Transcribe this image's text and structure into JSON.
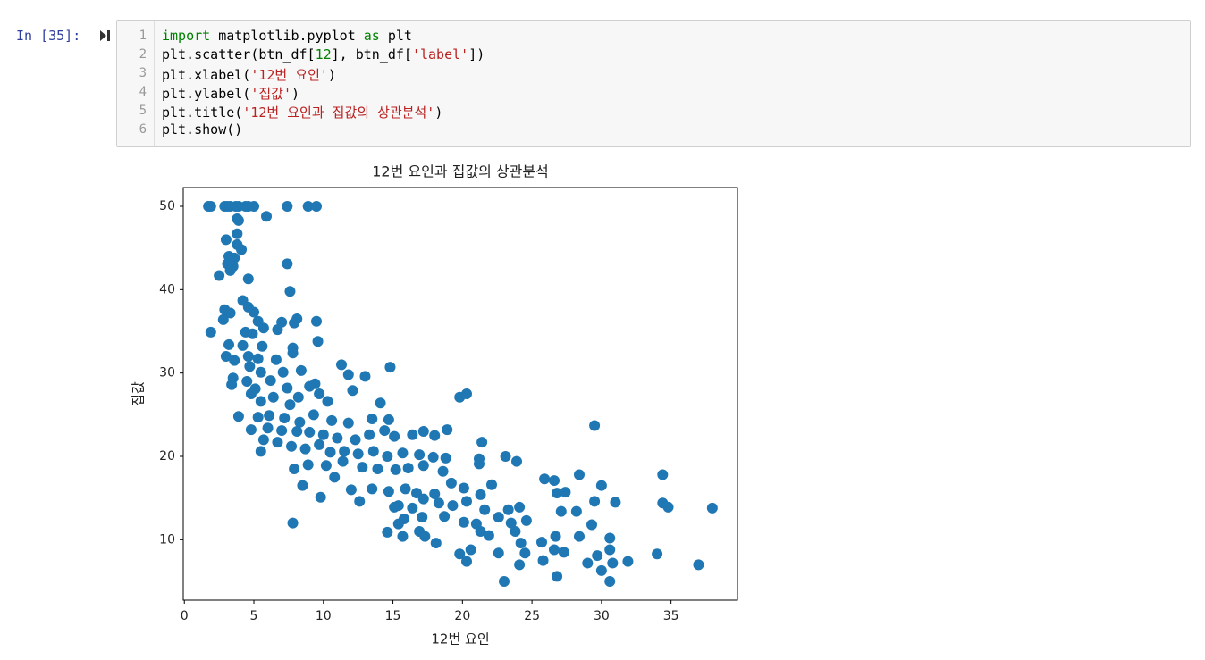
{
  "prompt": "In [35]:",
  "code": {
    "lines": [
      {
        "number": 1,
        "tokens": [
          {
            "text": "import",
            "style": "kw"
          },
          {
            "text": " matplotlib.pyplot "
          },
          {
            "text": "as",
            "style": "kw"
          },
          {
            "text": " plt"
          }
        ]
      },
      {
        "number": 2,
        "tokens": [
          {
            "text": "plt.scatter(btn_df["
          },
          {
            "text": "12",
            "style": "num"
          },
          {
            "text": "], btn_df["
          },
          {
            "text": "'label'",
            "style": "str"
          },
          {
            "text": "])"
          }
        ]
      },
      {
        "number": 3,
        "tokens": [
          {
            "text": "plt.xlabel("
          },
          {
            "text": "'12번 요인'",
            "style": "str"
          },
          {
            "text": ")"
          }
        ]
      },
      {
        "number": 4,
        "tokens": [
          {
            "text": "plt.ylabel("
          },
          {
            "text": "'집값'",
            "style": "str"
          },
          {
            "text": ")"
          }
        ]
      },
      {
        "number": 5,
        "tokens": [
          {
            "text": "plt.title("
          },
          {
            "text": "'12번 요인과 집값의 상관분석'",
            "style": "str"
          },
          {
            "text": ")"
          }
        ]
      },
      {
        "number": 6,
        "tokens": [
          {
            "text": "plt.show()"
          }
        ]
      }
    ],
    "styles": {
      "kw": "#008000",
      "str": "#ba2121",
      "num": "#008000"
    }
  },
  "chart_data": {
    "type": "scatter",
    "title": "12번 요인과 집값의 상관분석",
    "xlabel": "12번 요인",
    "ylabel": "집값",
    "color": "#1f77b4",
    "xlim": [
      -0.08,
      39.78
    ],
    "ylim": [
      2.75,
      52.25
    ],
    "xticks": [
      0,
      5,
      10,
      15,
      20,
      25,
      30,
      35
    ],
    "yticks": [
      10,
      20,
      30,
      40,
      50
    ],
    "x": [
      1.73,
      1.9,
      2.9,
      3.1,
      3.3,
      3.7,
      3.9,
      4.4,
      4.6,
      5.0,
      7.4,
      8.9,
      9.5,
      5.9,
      3.8,
      3.9,
      3.8,
      3.0,
      3.8,
      4.1,
      3.2,
      3.6,
      3.1,
      3.5,
      3.3,
      2.5,
      4.6,
      7.4,
      7.6,
      4.2,
      2.9,
      4.6,
      5.0,
      3.3,
      2.8,
      5.3,
      7.0,
      8.1,
      9.5,
      7.9,
      1.9,
      4.4,
      5.7,
      6.7,
      4.9,
      3.2,
      4.2,
      5.6,
      7.8,
      9.6,
      4.6,
      3.0,
      3.6,
      5.3,
      6.6,
      7.8,
      4.7,
      11.3,
      14.8,
      5.5,
      7.1,
      8.4,
      13.0,
      11.8,
      3.5,
      4.5,
      6.2,
      9.4,
      9.0,
      3.4,
      5.1,
      7.4,
      12.1,
      19.8,
      20.3,
      4.8,
      6.4,
      8.2,
      9.7,
      14.1,
      5.5,
      7.6,
      10.3,
      3.9,
      5.3,
      6.1,
      7.2,
      8.3,
      9.3,
      10.6,
      11.8,
      13.5,
      14.7,
      29.5,
      4.8,
      6.0,
      7.0,
      8.1,
      9.0,
      10.0,
      11.0,
      12.3,
      13.3,
      14.4,
      15.1,
      16.4,
      17.2,
      18.0,
      18.9,
      21.4,
      5.7,
      6.7,
      7.7,
      8.7,
      9.7,
      10.5,
      11.5,
      12.5,
      13.6,
      14.6,
      15.7,
      16.9,
      17.9,
      18.8,
      21.2,
      23.1,
      23.9,
      5.5,
      7.9,
      8.9,
      10.2,
      11.4,
      12.8,
      13.9,
      15.2,
      16.1,
      17.2,
      18.6,
      21.2,
      25.9,
      26.6,
      28.4,
      30.0,
      34.4,
      8.5,
      10.8,
      12.0,
      13.5,
      14.7,
      15.9,
      16.7,
      18.0,
      19.2,
      20.1,
      21.3,
      22.1,
      26.8,
      27.4,
      9.8,
      12.6,
      15.4,
      16.4,
      17.2,
      18.3,
      19.3,
      20.3,
      21.6,
      23.3,
      24.1,
      27.1,
      28.2,
      29.5,
      31.0,
      34.4,
      34.8,
      37.97,
      15.8,
      17.1,
      18.7,
      20.1,
      21.0,
      22.6,
      23.5,
      24.6,
      29.3,
      7.8,
      16.9,
      14.6,
      15.4,
      18.1,
      19.8,
      20.6,
      21.3,
      21.9,
      23.8,
      24.2,
      25.7,
      26.7,
      28.4,
      30.6,
      20.3,
      22.6,
      24.5,
      25.8,
      26.6,
      27.3,
      29.0,
      29.7,
      30.6,
      30.8,
      31.9,
      34.0,
      36.98,
      24.1,
      26.8,
      23.0,
      30.6,
      30.0,
      15.7,
      17.3,
      15.1
    ],
    "values": [
      50,
      50,
      50,
      50,
      50,
      50,
      50,
      50,
      50,
      50,
      50,
      50,
      50,
      48.8,
      48.5,
      48.3,
      46.7,
      46,
      45.4,
      44.8,
      44,
      43.8,
      43.1,
      42.8,
      42.3,
      41.7,
      41.3,
      43.1,
      39.8,
      38.7,
      37.6,
      37.9,
      37.3,
      37.2,
      36.4,
      36.2,
      36.1,
      36.5,
      36.2,
      36.0,
      34.9,
      34.9,
      35.4,
      35.2,
      34.7,
      33.4,
      33.3,
      33.2,
      33.0,
      33.8,
      32.0,
      32.0,
      31.5,
      31.7,
      31.6,
      32.4,
      30.8,
      31.0,
      30.7,
      30.1,
      30.1,
      30.3,
      29.6,
      29.8,
      29.4,
      29.0,
      29.1,
      28.7,
      28.4,
      28.6,
      28.1,
      28.2,
      27.9,
      27.1,
      27.5,
      27.5,
      27.1,
      27.1,
      27.5,
      26.4,
      26.6,
      26.2,
      26.6,
      24.8,
      24.7,
      24.9,
      24.6,
      24.1,
      25.0,
      24.3,
      24.0,
      24.5,
      24.4,
      23.7,
      23.2,
      23.4,
      23.1,
      23.0,
      22.9,
      22.6,
      22.2,
      22.0,
      22.6,
      23.1,
      22.4,
      22.6,
      23.0,
      22.5,
      23.2,
      21.7,
      22.0,
      21.7,
      21.2,
      20.9,
      21.4,
      20.5,
      20.6,
      20.3,
      20.6,
      20.0,
      20.4,
      20.2,
      19.9,
      19.8,
      19.7,
      20.0,
      19.4,
      20.6,
      18.5,
      19.0,
      18.9,
      19.4,
      18.7,
      18.5,
      18.4,
      18.6,
      18.9,
      18.2,
      19.1,
      17.3,
      17.1,
      17.8,
      16.5,
      17.8,
      16.5,
      17.5,
      16.0,
      16.1,
      15.8,
      16.1,
      15.6,
      15.5,
      16.8,
      16.2,
      15.4,
      16.6,
      15.6,
      15.7,
      15.1,
      14.6,
      14.1,
      13.8,
      14.9,
      14.4,
      14.1,
      14.6,
      13.6,
      13.6,
      13.9,
      13.4,
      13.4,
      14.6,
      14.5,
      14.4,
      13.9,
      13.8,
      12.5,
      12.7,
      12.8,
      12.1,
      11.9,
      12.7,
      12.0,
      12.3,
      11.8,
      12.0,
      11.0,
      10.9,
      11.9,
      9.6,
      8.3,
      8.8,
      11.0,
      10.5,
      11.0,
      9.6,
      9.7,
      10.4,
      10.4,
      10.2,
      7.4,
      8.4,
      8.4,
      7.5,
      8.8,
      8.5,
      7.2,
      8.1,
      8.8,
      7.2,
      7.4,
      8.3,
      7.0,
      7.0,
      5.6,
      5.0,
      5.0,
      6.3,
      10.4,
      10.4,
      13.9
    ]
  }
}
